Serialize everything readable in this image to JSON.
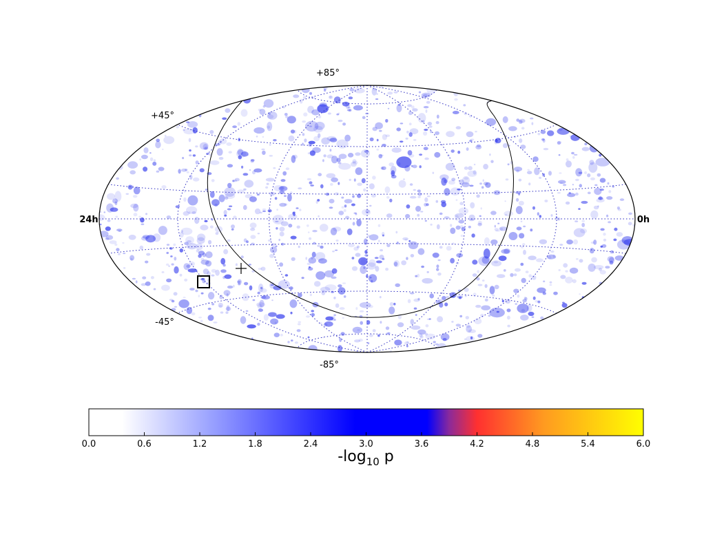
{
  "chart_data": {
    "type": "heatmap",
    "projection": "aitoff-hammer",
    "axes": {
      "lat_labels": {
        "top": "+85°",
        "upper_left": "+45°",
        "lower_left": "-45°",
        "bottom": "-85°"
      },
      "ra_labels": {
        "left": "24h",
        "right": "0h"
      },
      "ra_range_hours": [
        24,
        0
      ],
      "dec_range_deg": [
        -85,
        85
      ],
      "grid": true,
      "grid_style": "dotted"
    },
    "markers": [
      {
        "kind": "square",
        "ra_h": 18.4,
        "dec_deg": -27
      },
      {
        "kind": "plus",
        "ra_h": 16.3,
        "dec_deg": -22
      }
    ],
    "colorbar": {
      "label_prefix": "-log",
      "label_sub": "10",
      "label_suffix": " p",
      "ticks": [
        "0.0",
        "0.6",
        "1.2",
        "1.8",
        "2.4",
        "3.0",
        "3.6",
        "4.2",
        "4.8",
        "5.4",
        "6.0"
      ],
      "range": [
        0,
        6
      ],
      "colors": {
        "white": "#ffffff",
        "light_blue": "#9aa2ff",
        "blue": "#0000ff",
        "purple": "#8b2a9a",
        "red": "#ff3030",
        "orange": "#ff9a20",
        "yellow": "#ffff00"
      }
    },
    "map_colors": {
      "blob": "#3a42ee",
      "grid": "#2a2ac0",
      "outline": "#000000"
    }
  }
}
